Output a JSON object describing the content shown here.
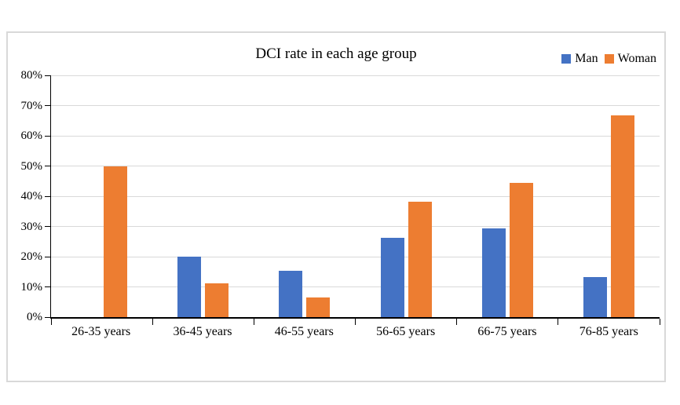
{
  "chart_data": {
    "type": "bar",
    "title": "DCI rate in each age group",
    "categories": [
      "26-35 years",
      "36-45 years",
      "46-55 years",
      "56-65 years",
      "66-75 years",
      "76-85 years"
    ],
    "series": [
      {
        "name": "Man",
        "color": "#4472c4",
        "values": [
          0,
          20,
          15.2,
          26.3,
          29.4,
          13.3
        ]
      },
      {
        "name": "Woman",
        "color": "#ed7d31",
        "values": [
          50,
          11.1,
          6.5,
          38.2,
          44.4,
          66.7
        ]
      }
    ],
    "ylim": [
      0,
      80
    ],
    "ytick_step": 10,
    "ytick_labels": [
      "0%",
      "10%",
      "20%",
      "30%",
      "40%",
      "50%",
      "60%",
      "70%",
      "80%"
    ],
    "grid": true,
    "legend_position": "top-right"
  },
  "colors": {
    "grid": "#d9d9d9",
    "axis": "#000000",
    "frame_border": "#d9d9d9",
    "background": "#ffffff",
    "text": "#000000"
  }
}
